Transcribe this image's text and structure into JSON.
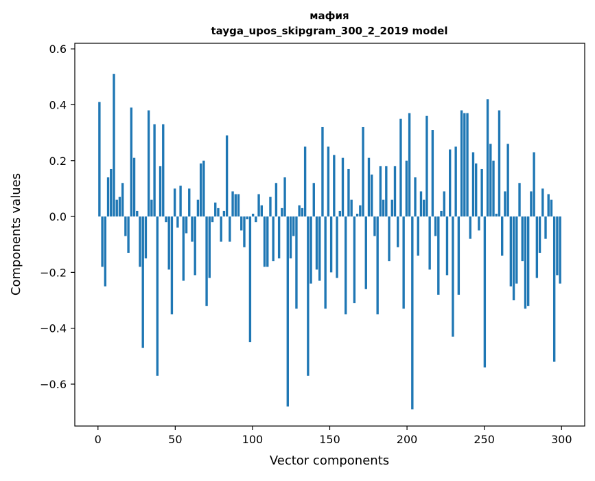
{
  "chart_data": {
    "type": "bar",
    "title": "мафия",
    "subtitle": "tayga_upos_skipgram_300_2_2019 model",
    "xlabel": "Vector components",
    "ylabel": "Components values",
    "xlim": [
      -15,
      315
    ],
    "ylim": [
      -0.75,
      0.62
    ],
    "x_ticks": [
      0,
      50,
      100,
      150,
      200,
      250,
      300
    ],
    "y_ticks": [
      -0.6,
      -0.4,
      -0.2,
      0.0,
      0.2,
      0.4,
      0.6
    ],
    "x_tick_labels": [
      "0",
      "50",
      "100",
      "150",
      "200",
      "250",
      "300"
    ],
    "y_tick_labels": [
      "−0.6",
      "−0.4",
      "−0.2",
      "0.0",
      "0.2",
      "0.4",
      "0.6"
    ],
    "grid": false,
    "bar_color": "#1f77b4",
    "values": [
      0.41,
      -0.18,
      -0.25,
      0.14,
      0.17,
      0.51,
      0.06,
      0.07,
      0.12,
      -0.07,
      -0.13,
      0.39,
      0.21,
      0.02,
      -0.18,
      -0.47,
      -0.15,
      0.38,
      0.06,
      0.33,
      -0.57,
      0.18,
      0.33,
      -0.02,
      -0.19,
      -0.35,
      0.1,
      -0.04,
      0.11,
      -0.23,
      -0.06,
      0.1,
      -0.09,
      -0.21,
      0.06,
      0.19,
      0.2,
      -0.32,
      -0.22,
      -0.02,
      0.05,
      0.03,
      -0.09,
      0.02,
      0.29,
      -0.09,
      0.09,
      0.08,
      0.08,
      -0.05,
      -0.11,
      -0.01,
      -0.45,
      0.01,
      -0.02,
      0.08,
      0.04,
      -0.18,
      -0.18,
      0.07,
      -0.16,
      0.12,
      -0.15,
      0.03,
      0.14,
      -0.68,
      -0.15,
      -0.07,
      -0.33,
      0.04,
      0.03,
      0.25,
      -0.57,
      -0.24,
      0.12,
      -0.19,
      -0.23,
      0.32,
      -0.33,
      0.25,
      -0.2,
      0.22,
      -0.22,
      0.02,
      0.21,
      -0.35,
      0.17,
      0.06,
      -0.31,
      0.01,
      0.04,
      0.32,
      -0.26,
      0.21,
      0.15,
      -0.07,
      -0.35,
      0.18,
      0.06,
      0.18,
      -0.16,
      0.06,
      0.18,
      -0.11,
      0.35,
      -0.33,
      0.2,
      0.37,
      -0.69,
      0.14,
      -0.14,
      0.09,
      0.06,
      0.36,
      -0.19,
      0.31,
      -0.07,
      -0.28,
      0.02,
      0.09,
      -0.21,
      0.24,
      -0.43,
      0.25,
      -0.28,
      0.38,
      0.37,
      0.37,
      -0.08,
      0.23,
      0.19,
      -0.05,
      0.17,
      -0.54,
      0.42,
      0.26,
      0.2,
      0.01,
      0.38,
      -0.14,
      0.09,
      0.26,
      -0.25,
      -0.3,
      -0.24,
      0.12,
      -0.16,
      -0.33,
      -0.32,
      0.09,
      0.23,
      -0.22,
      -0.13,
      0.1,
      -0.08,
      0.08,
      0.06,
      -0.52,
      -0.21,
      -0.24
    ]
  }
}
